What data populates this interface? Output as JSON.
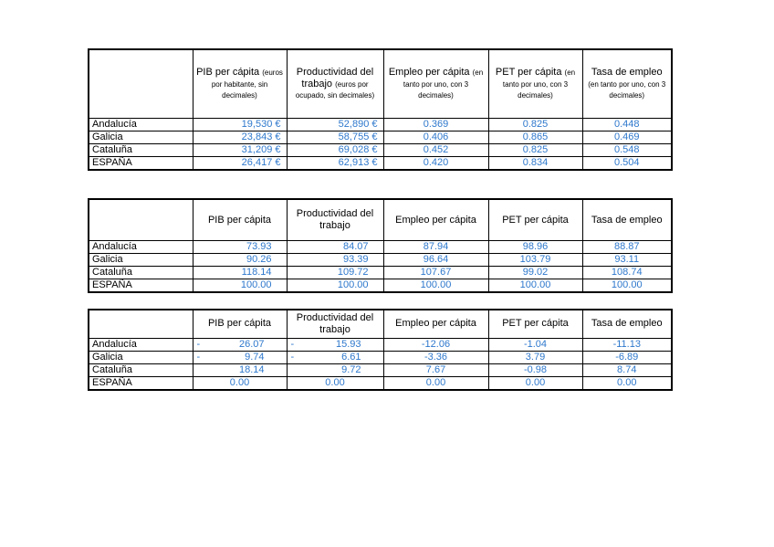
{
  "colors": {
    "data_text": "#2e78cc",
    "label_text": "#000000",
    "border": "#000000",
    "page_background": "#ffffff"
  },
  "tables": [
    {
      "name": "valores-absolutos",
      "columns": [
        {
          "title": "",
          "sub": ""
        },
        {
          "title": "PIB per cápita",
          "sub": "(euros por habitante, sin decimales)"
        },
        {
          "title": "Productividad del trabajo",
          "sub": "(euros por ocupado, sin decimales)"
        },
        {
          "title": "Empleo per cápita",
          "sub": "(en tanto por uno, con 3 decimales)"
        },
        {
          "title": "PET per cápita",
          "sub": "(en tanto por uno, con 3 decimales)"
        },
        {
          "title": "Tasa de empleo",
          "sub": "(en tanto por uno, con 3 decimales)"
        }
      ],
      "rows": [
        {
          "label": "Andalucía",
          "cells": [
            "19,530 €",
            "52,890 €",
            "0.369",
            "0.825",
            "0.448"
          ]
        },
        {
          "label": "Galicia",
          "cells": [
            "23,843 €",
            "58,755 €",
            "0.406",
            "0.865",
            "0.469"
          ]
        },
        {
          "label": "Cataluña",
          "cells": [
            "31,209 €",
            "69,028 €",
            "0.452",
            "0.825",
            "0.548"
          ]
        },
        {
          "label": "ESPAÑA",
          "cells": [
            "26,417 €",
            "62,913 €",
            "0.420",
            "0.834",
            "0.504"
          ]
        }
      ]
    },
    {
      "name": "indices-espana-100",
      "columns": [
        {
          "title": "",
          "sub": ""
        },
        {
          "title": "PIB per cápita",
          "sub": ""
        },
        {
          "title": "Productividad del trabajo",
          "sub": ""
        },
        {
          "title": "Empleo per cápita",
          "sub": ""
        },
        {
          "title": "PET per cápita",
          "sub": ""
        },
        {
          "title": "Tasa de empleo",
          "sub": ""
        }
      ],
      "rows": [
        {
          "label": "Andalucía",
          "cells": [
            "73.93",
            "84.07",
            "87.94",
            "98.96",
            "88.87"
          ]
        },
        {
          "label": "Galicia",
          "cells": [
            "90.26",
            "93.39",
            "96.64",
            "103.79",
            "93.11"
          ]
        },
        {
          "label": "Cataluña",
          "cells": [
            "118.14",
            "109.72",
            "107.67",
            "99.02",
            "108.74"
          ]
        },
        {
          "label": "ESPAÑA",
          "cells": [
            "100.00",
            "100.00",
            "100.00",
            "100.00",
            "100.00"
          ]
        }
      ]
    },
    {
      "name": "diferencias-con-espana",
      "columns": [
        {
          "title": "",
          "sub": ""
        },
        {
          "title": "PIB per cápita",
          "sub": ""
        },
        {
          "title": "Productividad del trabajo",
          "sub": ""
        },
        {
          "title": "Empleo per cápita",
          "sub": ""
        },
        {
          "title": "PET per cápita",
          "sub": ""
        },
        {
          "title": "Tasa de empleo",
          "sub": ""
        }
      ],
      "rows": [
        {
          "label": "Andalucía",
          "cells": [
            {
              "dash": "-",
              "value": "26.07"
            },
            {
              "dash": "-",
              "value": "15.93"
            },
            "-12.06",
            "-1.04",
            "-11.13"
          ]
        },
        {
          "label": "Galicia",
          "cells": [
            {
              "dash": "-",
              "value": "9.74"
            },
            {
              "dash": "-",
              "value": "6.61"
            },
            "-3.36",
            "3.79",
            "-6.89"
          ]
        },
        {
          "label": "Cataluña",
          "cells": [
            "18.14",
            "9.72",
            "7.67",
            "-0.98",
            "8.74"
          ]
        },
        {
          "label": "ESPAÑA",
          "cells": [
            {
              "value": "0.00",
              "align": "center"
            },
            {
              "value": "0.00",
              "align": "center"
            },
            "0.00",
            "0.00",
            "0.00"
          ]
        }
      ]
    }
  ]
}
